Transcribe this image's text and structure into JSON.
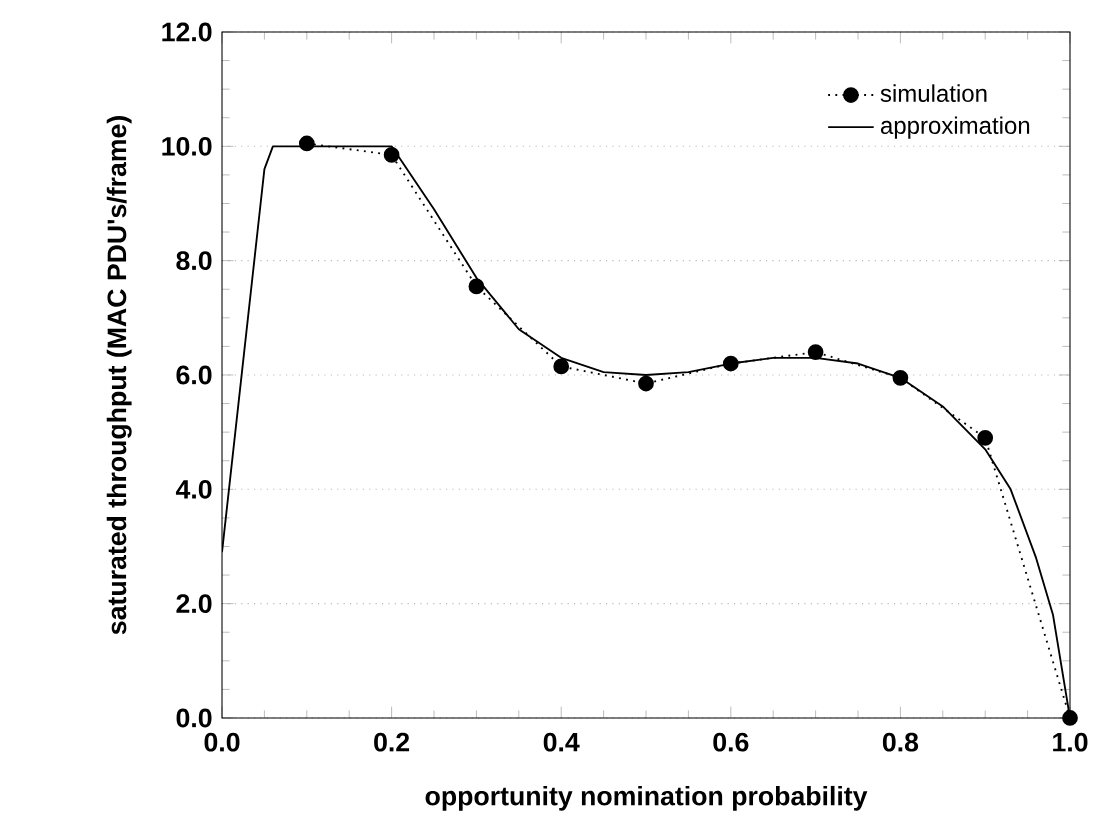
{
  "chart_data": {
    "type": "line",
    "xlabel": "opportunity nomination probability",
    "ylabel": "saturated throughput (MAC PDU's/frame)",
    "xlim": [
      0,
      1
    ],
    "ylim": [
      0,
      12
    ],
    "xticks": [
      {
        "value": 0,
        "label": "0.0"
      },
      {
        "value": 0.2,
        "label": "0.2"
      },
      {
        "value": 0.4,
        "label": "0.4"
      },
      {
        "value": 0.6,
        "label": "0.6"
      },
      {
        "value": 0.8,
        "label": "0.8"
      },
      {
        "value": 1,
        "label": "1.0"
      }
    ],
    "yticks": [
      {
        "value": 0,
        "label": "0.0"
      },
      {
        "value": 2,
        "label": "2.0"
      },
      {
        "value": 4,
        "label": "4.0"
      },
      {
        "value": 6,
        "label": "6.0"
      },
      {
        "value": 8,
        "label": "8.0"
      },
      {
        "value": 10,
        "label": "10.0"
      },
      {
        "value": 12,
        "label": "12.0"
      }
    ],
    "grid": "y",
    "legend": "top right",
    "series": [
      {
        "name": "simulation",
        "color": "#000000",
        "marker": "circle",
        "line_style": "dotted",
        "x": [
          0.1,
          0.2,
          0.3,
          0.4,
          0.5,
          0.6,
          0.7,
          0.8,
          0.9,
          1.0
        ],
        "values": [
          10.05,
          9.85,
          7.55,
          6.15,
          5.85,
          6.2,
          6.4,
          5.95,
          4.9,
          0.0
        ]
      },
      {
        "name": "approximation",
        "color": "#000000",
        "marker": "none",
        "line_style": "solid",
        "x": [
          0.0,
          0.05,
          0.06,
          0.2,
          0.25,
          0.3,
          0.35,
          0.4,
          0.45,
          0.5,
          0.55,
          0.6,
          0.65,
          0.7,
          0.75,
          0.8,
          0.85,
          0.9,
          0.93,
          0.96,
          0.98,
          1.0
        ],
        "values": [
          2.9,
          9.6,
          10.0,
          10.0,
          8.9,
          7.7,
          6.8,
          6.3,
          6.05,
          6.0,
          6.05,
          6.2,
          6.3,
          6.3,
          6.2,
          5.95,
          5.45,
          4.7,
          4.0,
          2.8,
          1.8,
          0.0
        ]
      }
    ]
  }
}
